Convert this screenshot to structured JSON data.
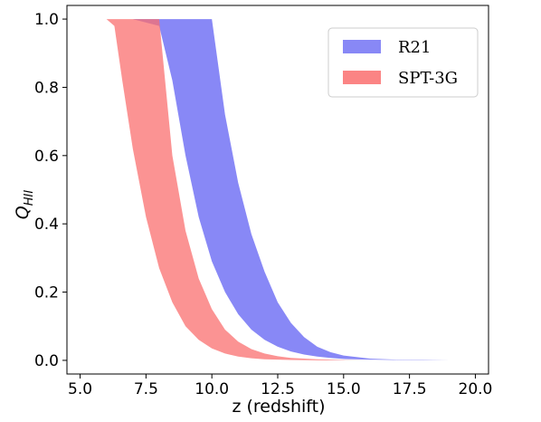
{
  "chart_data": {
    "type": "area",
    "xlabel": "z (redshift)",
    "ylabel_main": "Q",
    "ylabel_sub": "HII",
    "xlim": [
      4.5,
      20.5
    ],
    "ylim": [
      -0.04,
      1.04
    ],
    "xticks": [
      5.0,
      7.5,
      10.0,
      12.5,
      15.0,
      17.5,
      20.0
    ],
    "xtick_labels": [
      "5.0",
      "7.5",
      "10.0",
      "12.5",
      "15.0",
      "17.5",
      "20.0"
    ],
    "yticks": [
      0.0,
      0.2,
      0.4,
      0.6,
      0.8,
      1.0
    ],
    "ytick_labels": [
      "0.0",
      "0.2",
      "0.4",
      "0.6",
      "0.8",
      "1.0"
    ],
    "grid": false,
    "legend_position": "top-right",
    "series": [
      {
        "name": "R21",
        "color": "#7b7bf5",
        "x": [
          5.0,
          6.0,
          7.0,
          8.0,
          8.5,
          9.0,
          9.5,
          10.0,
          10.5,
          11.0,
          11.5,
          12.0,
          12.5,
          13.0,
          13.5,
          14.0,
          14.5,
          15.0,
          16.0,
          17.0,
          18.0,
          19.0,
          20.0
        ],
        "lower": [
          1.0,
          1.0,
          1.0,
          0.98,
          0.82,
          0.6,
          0.42,
          0.29,
          0.2,
          0.135,
          0.09,
          0.06,
          0.04,
          0.026,
          0.017,
          0.011,
          0.007,
          0.004,
          0.002,
          0.001,
          0.0,
          0.0,
          0.0
        ],
        "upper": [
          1.0,
          1.0,
          1.0,
          1.0,
          1.0,
          1.0,
          1.0,
          1.0,
          0.72,
          0.52,
          0.37,
          0.26,
          0.17,
          0.11,
          0.068,
          0.04,
          0.024,
          0.014,
          0.005,
          0.002,
          0.001,
          0.0,
          0.0
        ]
      },
      {
        "name": "SPT-3G",
        "color": "#fa6f6f",
        "x": [
          5.0,
          6.0,
          6.3,
          6.6,
          7.0,
          7.5,
          8.0,
          8.5,
          9.0,
          9.5,
          10.0,
          10.5,
          11.0,
          11.5,
          12.0,
          12.5,
          13.0,
          14.0,
          15.0,
          16.0,
          18.0,
          20.0
        ],
        "lower": [
          1.0,
          1.0,
          0.98,
          0.82,
          0.62,
          0.42,
          0.27,
          0.17,
          0.1,
          0.06,
          0.035,
          0.02,
          0.011,
          0.006,
          0.003,
          0.002,
          0.001,
          0.0,
          0.0,
          0.0,
          0.0,
          0.0
        ],
        "upper": [
          1.0,
          1.0,
          1.0,
          1.0,
          1.0,
          1.0,
          1.0,
          0.6,
          0.38,
          0.24,
          0.15,
          0.09,
          0.055,
          0.033,
          0.02,
          0.012,
          0.007,
          0.003,
          0.001,
          0.0,
          0.0,
          0.0
        ]
      }
    ]
  }
}
